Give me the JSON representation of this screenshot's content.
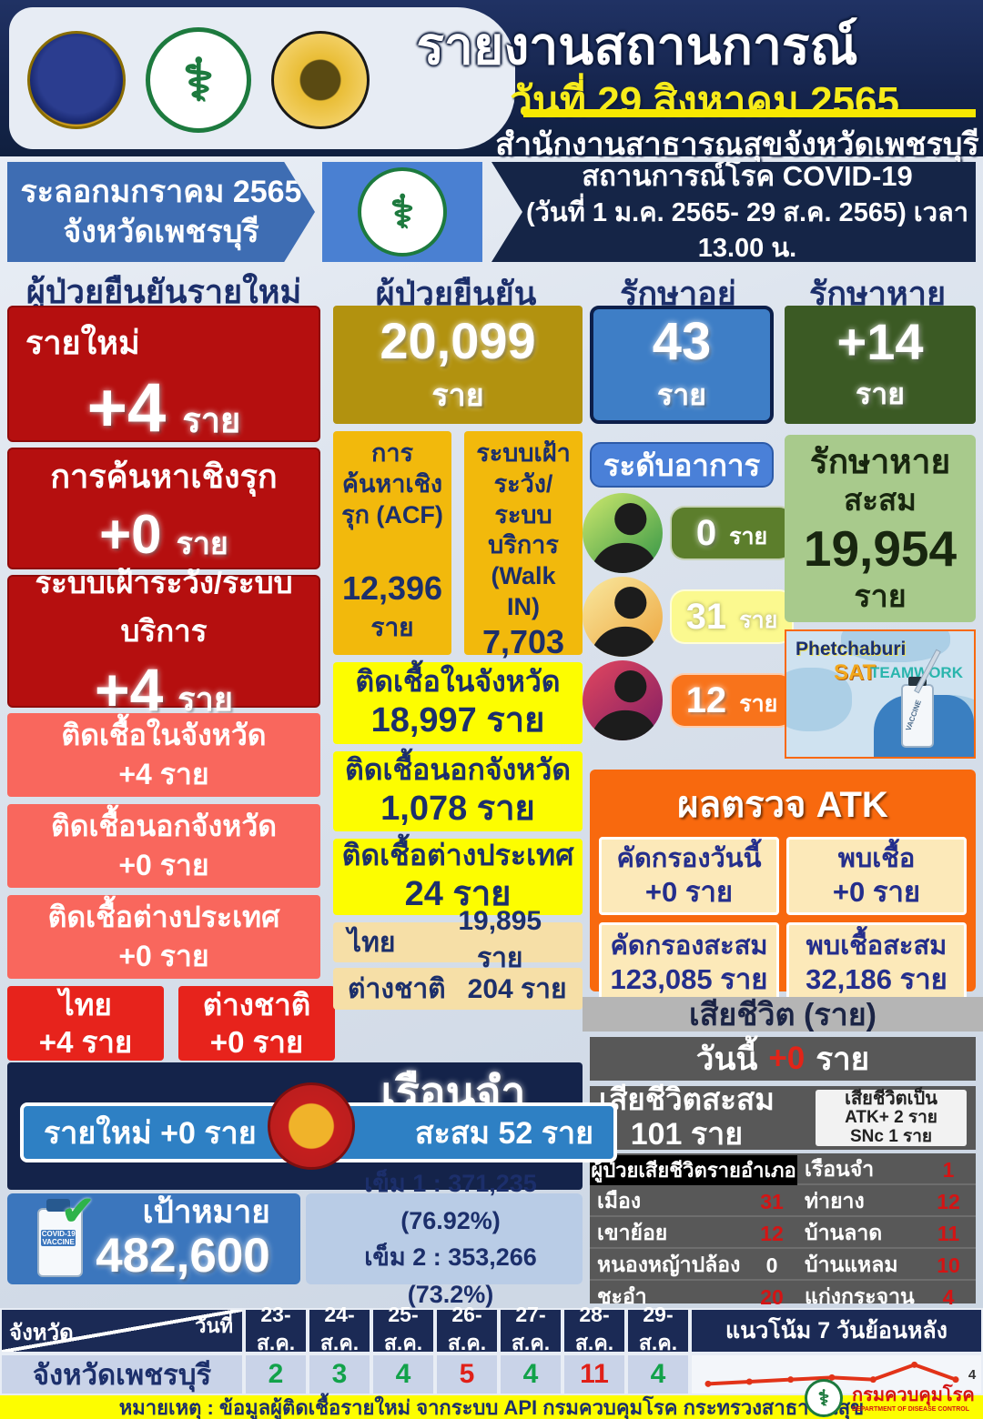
{
  "colors": {
    "navy": "#15244c",
    "dark_red": "#b50f0f",
    "salmon": "#f9675d",
    "bright_red": "#e7231c",
    "gold": "#b2920f",
    "amber": "#f2b90c",
    "yellow": "#fdfd00",
    "tan": "#f6dfa7",
    "treat_blue": "#3e7ec6",
    "dark_green": "#3b5a24",
    "light_green": "#a8ca8c",
    "atk_orange": "#f8690e",
    "cream": "#fce9b9",
    "death_gray": "#585858",
    "green_status": "#12a24a",
    "red_status": "#e02018"
  },
  "icons": {
    "garuda_seal": "provincial-garuda-seal",
    "moph_logo": "⚕",
    "province_seal": "phetchaburi-seal",
    "check": "✔",
    "ddc_logo": "⚕"
  },
  "header": {
    "title": "รายงานสถานการณ์",
    "date_line": "วันที่ 29 สิงหาคม 2565",
    "org": "สำนักงานสาธารณสุขจังหวัดเพชรบุรี"
  },
  "subheader": {
    "wave_line1": "ระลอกมกราคม 2565",
    "wave_line2": "จังหวัดเพชรบุรี",
    "situation_line1": "สถานการณ์โรค COVID-19",
    "situation_line2": "(วันที่ 1 ม.ค. 2565- 29 ส.ค. 2565) เวลา 13.00 น."
  },
  "section_headers": {
    "new_cases": "ผู้ป่วยยืนยันรายใหม่",
    "confirmed": "ผู้ป่วยยืนยัน",
    "in_treatment": "รักษาอยู่",
    "recovered": "รักษาหาย"
  },
  "new_cases": {
    "new_label": "รายใหม่",
    "new_value": "+4",
    "new_unit": "ราย",
    "acf_label": "การค้นหาเชิงรุก",
    "acf_value": "+0",
    "acf_unit": "ราย",
    "surv_label": "ระบบเฝ้าระวัง/ระบบบริการ",
    "surv_value": "+4",
    "surv_unit": "ราย",
    "in_label": "ติดเชื้อในจังหวัด",
    "in_value": "+4 ราย",
    "out_label": "ติดเชื้อนอกจังหวัด",
    "out_value": "+0 ราย",
    "abroad_label": "ติดเชื้อต่างประเทศ",
    "abroad_value": "+0 ราย",
    "thai_label": "ไทย",
    "thai_value": "+4 ราย",
    "foreign_label": "ต่างชาติ",
    "foreign_value": "+0 ราย"
  },
  "confirmed": {
    "total_value": "20,099",
    "total_unit": "ราย",
    "acf_label": "การค้นหาเชิงรุก (ACF)",
    "acf_value": "12,396",
    "acf_unit": "ราย",
    "walkin_label": "ระบบเฝ้าระวัง/ระบบบริการ (Walk IN)",
    "walkin_value": "7,703",
    "walkin_unit": "ราย",
    "in_label": "ติดเชื้อในจังหวัด",
    "in_value": "18,997 ราย",
    "out_label": "ติดเชื้อนอกจังหวัด",
    "out_value": "1,078 ราย",
    "abroad_label": "ติดเชื้อต่างประเทศ",
    "abroad_value": "24 ราย",
    "thai_label": "ไทย",
    "thai_value": "19,895 ราย",
    "foreign_label": "ต่างชาติ",
    "foreign_value": "204 ราย"
  },
  "in_treatment": {
    "value": "43",
    "unit": "ราย"
  },
  "recovered": {
    "value": "+14",
    "unit": "ราย",
    "cum_label1": "รักษาหาย",
    "cum_label2": "สะสม",
    "cum_value": "19,954",
    "cum_unit": "ราย"
  },
  "severity": {
    "title": "ระดับอาการ",
    "levels": [
      {
        "name": "green",
        "value": "0",
        "unit": "ราย"
      },
      {
        "name": "yellow",
        "value": "31",
        "unit": "ราย"
      },
      {
        "name": "red",
        "value": "12",
        "unit": "ราย"
      }
    ]
  },
  "sat_logo": {
    "line1": "Phetchaburi",
    "line2": "SAT",
    "line3": "TEAMWORK",
    "vial_label": "VACCINE"
  },
  "atk": {
    "title": "ผลตรวจ ATK",
    "cells": [
      {
        "label": "คัดกรองวันนี้",
        "value": "+0 ราย"
      },
      {
        "label": "พบเชื้อ",
        "value": "+0 ราย"
      },
      {
        "label": "คัดกรองสะสม",
        "value": "123,085 ราย"
      },
      {
        "label": "พบเชื้อสะสม",
        "value": "32,186 ราย"
      }
    ]
  },
  "deaths": {
    "section_title": "เสียชีวิต (ราย)",
    "today_prefix": "วันนี้",
    "today_value": "+0",
    "today_unit": "ราย",
    "cum_label": "เสียชีวิตสะสม",
    "cum_value": "101 ราย",
    "breakdown_title": "เสียชีวิตเป็น",
    "breakdown_line1": "ATK+ 2 ราย",
    "breakdown_line2": "SNc 1 ราย",
    "table_title": "ผู้ป่วยเสียชีวิตรายอำเภอ",
    "rows": [
      {
        "n1": "",
        "v1": "",
        "n2": "เรือนจำ",
        "v2": "1"
      },
      {
        "n1": "เมือง",
        "v1": "31",
        "n2": "ท่ายาง",
        "v2": "12"
      },
      {
        "n1": "เขาย้อย",
        "v1": "12",
        "n2": "บ้านลาด",
        "v2": "11"
      },
      {
        "n1": "หนองหญ้าปล้อง",
        "v1": "0",
        "n2": "บ้านแหลม",
        "v2": "10"
      },
      {
        "n1": "ชะอำ",
        "v1": "20",
        "n2": "แก่งกระจาน",
        "v2": "4"
      }
    ]
  },
  "prison": {
    "title": "เรือนจำ",
    "new": "รายใหม่ +0  ราย",
    "cum": "สะสม 52 ราย"
  },
  "vaccine": {
    "goal_label": "เป้าหมาย",
    "goal_value": "482,600",
    "vial_label": "COVID-19 VACCINE",
    "dose1": "เข็ม 1 :  371,235 (76.92%)",
    "dose2": "เข็ม 2 :  353,266 (73.2%)"
  },
  "trend_table": {
    "corner_top": "วันที่",
    "corner_bottom": "จังหวัด",
    "dates": [
      "23-ส.ค.",
      "24-ส.ค.",
      "25-ส.ค.",
      "26-ส.ค.",
      "27-ส.ค.",
      "28-ส.ค.",
      "29-ส.ค."
    ],
    "trend_header": "แนวโน้ม 7 วันย้อนหลัง",
    "row_label": "จังหวัดเพชรบุรี",
    "values": [
      "2",
      "3",
      "4",
      "5",
      "4",
      "11",
      "4"
    ],
    "value_colors": [
      "#12a24a",
      "#12a24a",
      "#12a24a",
      "#e02018",
      "#12a24a",
      "#e02018",
      "#12a24a"
    ],
    "end_label": "4"
  },
  "chart_data": {
    "type": "line",
    "title": "แนวโน้ม 7 วันย้อนหลัง",
    "series_name": "จังหวัดเพชรบุรี",
    "categories": [
      "23-ส.ค.",
      "24-ส.ค.",
      "25-ส.ค.",
      "26-ส.ค.",
      "27-ส.ค.",
      "28-ส.ค.",
      "29-ส.ค."
    ],
    "values": [
      2,
      3,
      4,
      5,
      4,
      11,
      4
    ],
    "line_color": "#e23318",
    "ylim": [
      0,
      12
    ],
    "legend_position": "none",
    "grid": false
  },
  "footer": {
    "note": "หมายเหตุ : ข้อมูลผู้ติดเชื้อรายใหม่ จากระบบ API กรมควบคุมโรค กระทรวงสาธารณสุข",
    "dept": "กรมควบคุมโรค",
    "dept_sub": "DEPARTMENT OF DISEASE CONTROL"
  }
}
